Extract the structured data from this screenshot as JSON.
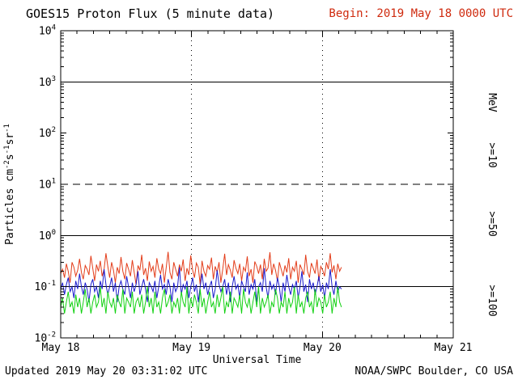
{
  "header": {
    "title": "GOES15 Proton Flux (5 minute data)",
    "begin": "Begin: 2019 May 18 0000 UTC",
    "begin_color": "#cf2a0e"
  },
  "footer": {
    "updated": "Updated 2019 May 20 03:31:02 UTC",
    "source": "NOAA/SWPC Boulder, CO USA"
  },
  "chart_data": {
    "type": "line",
    "title": "GOES15 Proton Flux (5 minute data)",
    "xlabel": "Universal Time",
    "ylabel_segments": [
      {
        "t": "Particles cm",
        "sup": false
      },
      {
        "t": "-2",
        "sup": true
      },
      {
        "t": "s",
        "sup": false
      },
      {
        "t": "-1",
        "sup": true
      },
      {
        "t": "sr",
        "sup": false
      },
      {
        "t": "-1",
        "sup": true
      }
    ],
    "y_scale": "log",
    "y_exponent_range": [
      -2,
      4
    ],
    "y_ticks_exponents": [
      4,
      3,
      2,
      1,
      0,
      -1,
      -2
    ],
    "x_range_days": [
      0,
      3
    ],
    "x_ticks": [
      {
        "day": 0,
        "label": "May 18"
      },
      {
        "day": 1,
        "label": "May 19"
      },
      {
        "day": 2,
        "label": "May 20"
      },
      {
        "day": 3,
        "label": "May 21"
      }
    ],
    "minor_x_hours": 3,
    "hlines": [
      {
        "value": 1000,
        "style": "solid"
      },
      {
        "value": 10,
        "style": "dashed"
      },
      {
        "value": 1,
        "style": "solid"
      },
      {
        "value": 0.1,
        "style": "solid"
      }
    ],
    "vlines_days": [
      1,
      2
    ],
    "right_labels": [
      {
        "label": "MeV",
        "color": "#000000"
      },
      {
        "label": ">=10",
        "color": "#e33d1a"
      },
      {
        "label": ">=50",
        "color": "#1a1acd"
      },
      {
        "label": ">=100",
        "color": "#12d112"
      }
    ],
    "series": [
      {
        "name": "ge10MeV",
        "legend": ">=10",
        "color": "#e33d1a",
        "x_start_day": 0,
        "x_end_day": 2.146,
        "values": [
          0.18,
          0.22,
          0.15,
          0.28,
          0.2,
          0.12,
          0.3,
          0.24,
          0.16,
          0.21,
          0.35,
          0.19,
          0.14,
          0.26,
          0.22,
          0.17,
          0.4,
          0.23,
          0.13,
          0.27,
          0.2,
          0.32,
          0.16,
          0.22,
          0.45,
          0.25,
          0.15,
          0.3,
          0.21,
          0.12,
          0.24,
          0.18,
          0.38,
          0.2,
          0.14,
          0.29,
          0.22,
          0.16,
          0.33,
          0.19,
          0.11,
          0.26,
          0.21,
          0.42,
          0.17,
          0.23,
          0.13,
          0.31,
          0.2,
          0.25,
          0.15,
          0.36,
          0.22,
          0.18,
          0.28,
          0.12,
          0.24,
          0.48,
          0.19,
          0.14,
          0.3,
          0.22,
          0.16,
          0.27,
          0.2,
          0.34,
          0.13,
          0.23,
          0.17,
          0.41,
          0.21,
          0.15,
          0.29,
          0.24,
          0.11,
          0.32,
          0.2,
          0.16,
          0.26,
          0.22,
          0.37,
          0.14,
          0.25,
          0.19,
          0.3,
          0.12,
          0.22,
          0.44,
          0.17,
          0.27,
          0.21,
          0.15,
          0.33,
          0.23,
          0.18,
          0.28,
          0.13,
          0.24,
          0.2,
          0.39,
          0.16,
          0.22,
          0.12,
          0.31,
          0.25,
          0.18,
          0.27,
          0.14,
          0.35,
          0.2,
          0.23,
          0.47,
          0.17,
          0.28,
          0.21,
          0.13,
          0.3,
          0.22,
          0.16,
          0.26,
          0.19,
          0.36,
          0.14,
          0.24,
          0.2,
          0.32,
          0.12,
          0.27,
          0.22,
          0.17,
          0.42,
          0.2,
          0.15,
          0.29,
          0.23,
          0.18,
          0.34,
          0.13,
          0.25,
          0.21,
          0.16,
          0.3,
          0.22,
          0.45,
          0.19,
          0.26,
          0.14,
          0.28,
          0.2,
          0.24
        ]
      },
      {
        "name": "ge50MeV",
        "legend": ">=50",
        "color": "#1a1acd",
        "x_start_day": 0,
        "x_end_day": 2.146,
        "values": [
          0.09,
          0.12,
          0.07,
          0.11,
          0.15,
          0.08,
          0.1,
          0.06,
          0.13,
          0.09,
          0.18,
          0.1,
          0.07,
          0.12,
          0.09,
          0.05,
          0.11,
          0.14,
          0.08,
          0.1,
          0.06,
          0.13,
          0.09,
          0.22,
          0.11,
          0.07,
          0.1,
          0.15,
          0.08,
          0.12,
          0.05,
          0.1,
          0.13,
          0.09,
          0.07,
          0.16,
          0.1,
          0.06,
          0.12,
          0.08,
          0.11,
          0.2,
          0.07,
          0.1,
          0.14,
          0.09,
          0.05,
          0.12,
          0.1,
          0.08,
          0.13,
          0.06,
          0.1,
          0.17,
          0.09,
          0.11,
          0.07,
          0.14,
          0.1,
          0.05,
          0.12,
          0.08,
          0.1,
          0.24,
          0.07,
          0.11,
          0.09,
          0.13,
          0.06,
          0.1,
          0.15,
          0.08,
          0.11,
          0.05,
          0.1,
          0.18,
          0.09,
          0.12,
          0.07,
          0.1,
          0.13,
          0.06,
          0.09,
          0.21,
          0.11,
          0.08,
          0.1,
          0.14,
          0.07,
          0.12,
          0.05,
          0.1,
          0.16,
          0.09,
          0.11,
          0.06,
          0.13,
          0.1,
          0.08,
          0.19,
          0.07,
          0.11,
          0.09,
          0.14,
          0.05,
          0.1,
          0.12,
          0.08,
          0.23,
          0.1,
          0.06,
          0.13,
          0.09,
          0.11,
          0.07,
          0.15,
          0.1,
          0.05,
          0.12,
          0.08,
          0.17,
          0.1,
          0.07,
          0.11,
          0.09,
          0.13,
          0.06,
          0.1,
          0.2,
          0.08,
          0.11,
          0.05,
          0.14,
          0.09,
          0.12,
          0.07,
          0.1,
          0.16,
          0.08,
          0.11,
          0.06,
          0.12,
          0.09,
          0.22,
          0.1,
          0.07,
          0.13,
          0.08,
          0.1,
          0.09
        ]
      },
      {
        "name": "ge100MeV",
        "legend": ">=100",
        "color": "#12d112",
        "x_start_day": 0,
        "x_end_day": 2.146,
        "values": [
          0.04,
          0.06,
          0.03,
          0.05,
          0.08,
          0.04,
          0.05,
          0.03,
          0.07,
          0.04,
          0.06,
          0.03,
          0.05,
          0.09,
          0.04,
          0.06,
          0.03,
          0.05,
          0.07,
          0.04,
          0.05,
          0.1,
          0.04,
          0.06,
          0.03,
          0.08,
          0.05,
          0.04,
          0.06,
          0.03,
          0.07,
          0.05,
          0.04,
          0.09,
          0.03,
          0.06,
          0.05,
          0.04,
          0.08,
          0.03,
          0.05,
          0.06,
          0.04,
          0.07,
          0.03,
          0.05,
          0.1,
          0.04,
          0.06,
          0.03,
          0.08,
          0.04,
          0.05,
          0.03,
          0.06,
          0.09,
          0.04,
          0.05,
          0.07,
          0.03,
          0.05,
          0.04,
          0.06,
          0.03,
          0.08,
          0.05,
          0.04,
          0.1,
          0.03,
          0.06,
          0.04,
          0.07,
          0.05,
          0.03,
          0.09,
          0.04,
          0.06,
          0.03,
          0.05,
          0.08,
          0.04,
          0.05,
          0.03,
          0.07,
          0.04,
          0.06,
          0.1,
          0.03,
          0.05,
          0.04,
          0.08,
          0.03,
          0.06,
          0.05,
          0.04,
          0.07,
          0.03,
          0.09,
          0.05,
          0.04,
          0.06,
          0.03,
          0.05,
          0.08,
          0.04,
          0.1,
          0.03,
          0.06,
          0.04,
          0.05,
          0.07,
          0.03,
          0.05,
          0.04,
          0.09,
          0.06,
          0.03,
          0.05,
          0.04,
          0.08,
          0.03,
          0.06,
          0.04,
          0.05,
          0.1,
          0.03,
          0.07,
          0.04,
          0.05,
          0.03,
          0.06,
          0.08,
          0.04,
          0.05,
          0.03,
          0.09,
          0.04,
          0.06,
          0.05,
          0.03,
          0.07,
          0.04,
          0.05,
          0.08,
          0.03,
          0.06,
          0.04,
          0.1,
          0.05,
          0.04
        ]
      }
    ]
  }
}
